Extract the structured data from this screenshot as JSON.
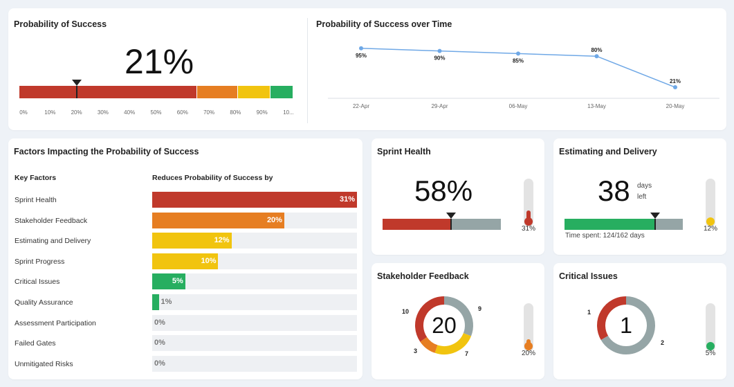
{
  "pos_card": {
    "title": "Probability of Success",
    "value": "21%",
    "ticks": [
      "0%",
      "10%",
      "20%",
      "30%",
      "40%",
      "50%",
      "60%",
      "70%",
      "80%",
      "90%",
      "10..."
    ],
    "marker_fraction": 0.21,
    "segments": [
      {
        "from": 0,
        "to": 0.65,
        "color": "#c0392b"
      },
      {
        "from": 0.65,
        "to": 0.8,
        "color": "#e67e22"
      },
      {
        "from": 0.8,
        "to": 0.92,
        "color": "#f1c40f"
      },
      {
        "from": 0.92,
        "to": 1.0,
        "color": "#27ae60"
      }
    ]
  },
  "over_time": {
    "title": "Probability of Success over Time",
    "chart_data": {
      "type": "line",
      "x": [
        "22-Apr",
        "29-Apr",
        "06-May",
        "13-May",
        "20-May"
      ],
      "series": [
        {
          "values": [
            95,
            90,
            85,
            80,
            21
          ]
        }
      ],
      "data_labels": [
        "95%",
        "90%",
        "85%",
        "80%",
        "21%"
      ],
      "line_color": "#6fa8e6"
    }
  },
  "factors": {
    "title": "Factors Impacting the Probability of Success",
    "col1_header": "Key Factors",
    "col2_header": "Reduces Probability of Success by",
    "items": [
      {
        "label": "Sprint Health",
        "value": 31,
        "text": "31%",
        "color": "#c0392b"
      },
      {
        "label": "Stakeholder Feedback",
        "value": 20,
        "text": "20%",
        "color": "#e67e22"
      },
      {
        "label": "Estimating and Delivery",
        "value": 12,
        "text": "12%",
        "color": "#f1c40f"
      },
      {
        "label": "Sprint Progress",
        "value": 10,
        "text": "10%",
        "color": "#f1c40f"
      },
      {
        "label": "Critical Issues",
        "value": 5,
        "text": "5%",
        "color": "#27ae60"
      },
      {
        "label": "Quality Assurance",
        "value": 1,
        "text": "1%",
        "color": "#27ae60"
      },
      {
        "label": "Assessment Participation",
        "value": 0,
        "text": "0%",
        "color": "#27ae60"
      },
      {
        "label": "Failed Gates",
        "value": 0,
        "text": "0%",
        "color": "#27ae60"
      },
      {
        "label": "Unmitigated Risks",
        "value": 0,
        "text": "0%",
        "color": "#27ae60"
      }
    ],
    "max_value": 31
  },
  "sprint_health": {
    "title": "Sprint Health",
    "value": "58%",
    "marker_fraction": 0.58,
    "bar_colors": [
      "#c0392b",
      "#95a5a6"
    ],
    "thermo_label": "31%",
    "thermo_fraction": 0.31,
    "thermo_color": "#c0392b"
  },
  "estimating": {
    "title": "Estimating and Delivery",
    "value": "38",
    "unit_line1": "days",
    "unit_line2": "left",
    "time_spent": "Time spent: 124/162 days",
    "marker_fraction": 0.765,
    "bar_colors": [
      "#27ae60",
      "#95a5a6"
    ],
    "thermo_label": "12%",
    "thermo_fraction": 0.12,
    "thermo_color": "#f1c40f"
  },
  "stakeholder": {
    "title": "Stakeholder Feedback",
    "center": "20",
    "segments": [
      {
        "label": "10",
        "value": 10,
        "color": "#c0392b"
      },
      {
        "label": "9",
        "value": 9,
        "color": "#95a5a6"
      },
      {
        "label": "7",
        "value": 7,
        "color": "#f1c40f"
      },
      {
        "label": "3",
        "value": 3,
        "color": "#e67e22"
      }
    ],
    "thermo_label": "20%",
    "thermo_fraction": 0.2,
    "thermo_color": "#e67e22"
  },
  "critical": {
    "title": "Critical Issues",
    "center": "1",
    "segments": [
      {
        "label": "1",
        "value": 1,
        "color": "#c0392b"
      },
      {
        "label": "2",
        "value": 2,
        "color": "#95a5a6"
      }
    ],
    "thermo_label": "5%",
    "thermo_fraction": 0.05,
    "thermo_color": "#27ae60"
  }
}
